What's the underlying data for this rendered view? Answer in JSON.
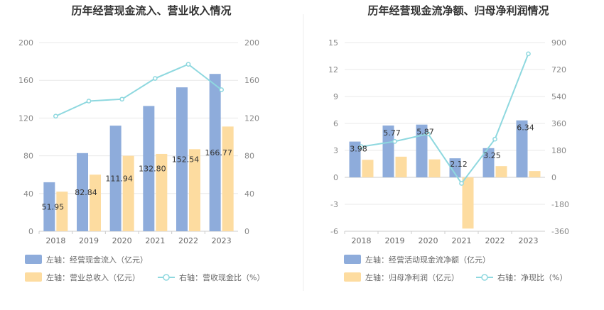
{
  "chart_data": [
    {
      "type": "bar",
      "title": "历年经营现金流入、营业收入情况",
      "categories": [
        "2018",
        "2019",
        "2020",
        "2021",
        "2022",
        "2023"
      ],
      "left_axis": {
        "ticks": [
          "0",
          "40",
          "80",
          "120",
          "160",
          "200"
        ],
        "ylim": [
          0,
          200
        ]
      },
      "right_axis": {
        "ticks": [
          "0",
          "40",
          "80",
          "120",
          "160",
          "200"
        ],
        "ylim": [
          0,
          200
        ]
      },
      "series": [
        {
          "name": "左轴：经营现金流入（亿元）",
          "type": "bar",
          "axis": "left",
          "color": "#8eacdb",
          "values": [
            51.95,
            82.84,
            111.94,
            132.8,
            152.54,
            166.77
          ],
          "labels": [
            "51.95",
            "82.84",
            "111.94",
            "132.80",
            "152.54",
            "166.77"
          ]
        },
        {
          "name": "左轴：营业总收入（亿元）",
          "type": "bar",
          "axis": "left",
          "color": "#fddca0",
          "values": [
            42,
            60,
            80,
            82,
            87,
            111
          ]
        },
        {
          "name": "右轴：营收现金比（%）",
          "type": "line",
          "axis": "right",
          "color": "#8ed8df",
          "values": [
            122,
            138,
            140,
            162,
            177,
            150
          ]
        }
      ],
      "legend_position": "bottom-left",
      "grid": true
    },
    {
      "type": "bar",
      "title": "历年经营现金流净额、归母净利润情况",
      "categories": [
        "2018",
        "2019",
        "2020",
        "2021",
        "2022",
        "2023"
      ],
      "left_axis": {
        "ticks": [
          "-6",
          "-3",
          "0",
          "3",
          "6",
          "9",
          "12",
          "15"
        ],
        "ylim": [
          -6,
          15
        ]
      },
      "right_axis": {
        "ticks": [
          "-360",
          "-180",
          "0",
          "180",
          "360",
          "540",
          "720",
          "900"
        ],
        "ylim": [
          -360,
          900
        ]
      },
      "series": [
        {
          "name": "左轴：经营活动现金流净额（亿元）",
          "type": "bar",
          "axis": "left",
          "color": "#8eacdb",
          "values": [
            3.98,
            5.77,
            5.87,
            2.12,
            3.25,
            6.34
          ],
          "labels": [
            "3.98",
            "5.77",
            "5.87",
            "2.12",
            "3.25",
            "6.34"
          ]
        },
        {
          "name": "左轴：归母净利润（亿元）",
          "type": "bar",
          "axis": "left",
          "color": "#fddca0",
          "values": [
            1.95,
            2.3,
            2.0,
            -5.7,
            1.25,
            0.7
          ]
        },
        {
          "name": "右轴：净现比（%）",
          "type": "line",
          "axis": "right",
          "color": "#8ed8df",
          "values": [
            205,
            240,
            290,
            -40,
            255,
            825
          ]
        }
      ],
      "legend_position": "bottom-left",
      "grid": true
    }
  ]
}
